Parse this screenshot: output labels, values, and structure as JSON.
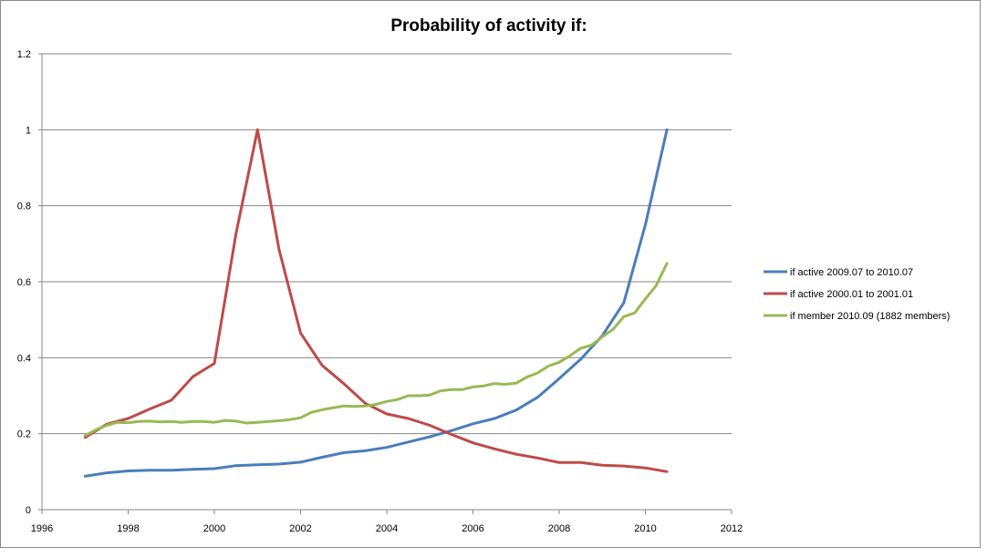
{
  "chart_data": {
    "type": "line",
    "title": "Probability of activity  if:",
    "xlabel": "",
    "ylabel": "",
    "xlim": [
      1996,
      2012
    ],
    "ylim": [
      0,
      1.2
    ],
    "xticks": [
      1996,
      1998,
      2000,
      2002,
      2004,
      2006,
      2008,
      2010,
      2012
    ],
    "yticks": [
      0,
      0.2,
      0.4,
      0.6,
      0.8,
      1,
      1.2
    ],
    "xtick_labels": [
      "1996",
      "1998",
      "2000",
      "2002",
      "2004",
      "2006",
      "2008",
      "2010",
      "2012"
    ],
    "ytick_labels": [
      "0",
      "0.2",
      "0.4",
      "0.6",
      "0.8",
      "1",
      "1.2"
    ],
    "grid": "horizontal",
    "legend_position": "right",
    "series": [
      {
        "name": "if active 2009.07 to 2010.07",
        "color": "#4a7ebb",
        "x": [
          1997,
          1997.5,
          1998,
          1998.5,
          1999,
          1999.5,
          2000,
          2000.5,
          2001,
          2001.5,
          2002,
          2002.5,
          2003,
          2003.5,
          2004,
          2004.5,
          2005,
          2005.5,
          2006,
          2006.5,
          2007,
          2007.5,
          2008,
          2008.5,
          2009,
          2009.5,
          2010,
          2010.5
        ],
        "y": [
          0.088,
          0.097,
          0.102,
          0.104,
          0.104,
          0.106,
          0.108,
          0.116,
          0.118,
          0.12,
          0.125,
          0.138,
          0.15,
          0.155,
          0.164,
          0.178,
          0.192,
          0.208,
          0.226,
          0.24,
          0.262,
          0.296,
          0.345,
          0.396,
          0.458,
          0.545,
          0.75,
          1.0
        ]
      },
      {
        "name": "if active 2000.01 to  2001.01",
        "color": "#be4b48",
        "x": [
          1997,
          1997.5,
          1998,
          1998.5,
          1999,
          1999.5,
          2000,
          2000.5,
          2001,
          2001.5,
          2002,
          2002.5,
          2003,
          2003.5,
          2004,
          2004.5,
          2005,
          2005.5,
          2006,
          2006.5,
          2007,
          2007.5,
          2008,
          2008.5,
          2009,
          2009.5,
          2010,
          2010.5
        ],
        "y": [
          0.19,
          0.225,
          0.24,
          0.265,
          0.288,
          0.35,
          0.385,
          0.725,
          1.0,
          0.685,
          0.465,
          0.38,
          0.332,
          0.28,
          0.252,
          0.24,
          0.222,
          0.198,
          0.176,
          0.16,
          0.146,
          0.136,
          0.124,
          0.124,
          0.117,
          0.115,
          0.11,
          0.1
        ]
      },
      {
        "name": "if member 2010.09 (1882 members)",
        "color": "#98b954",
        "x": [
          1997,
          1997.25,
          1997.5,
          1997.75,
          1998,
          1998.25,
          1998.5,
          1998.75,
          1999,
          1999.25,
          1999.5,
          1999.75,
          2000,
          2000.25,
          2000.5,
          2000.75,
          2001,
          2001.25,
          2001.5,
          2001.75,
          2002,
          2002.25,
          2002.5,
          2002.75,
          2003,
          2003.25,
          2003.5,
          2003.75,
          2004,
          2004.25,
          2004.5,
          2004.75,
          2005,
          2005.25,
          2005.5,
          2005.75,
          2006,
          2006.25,
          2006.5,
          2006.75,
          2007,
          2007.25,
          2007.5,
          2007.75,
          2008,
          2008.25,
          2008.5,
          2008.75,
          2009,
          2009.25,
          2009.5,
          2009.75,
          2010,
          2010.25,
          2010.5
        ],
        "y": [
          0.195,
          0.21,
          0.222,
          0.23,
          0.229,
          0.232,
          0.233,
          0.231,
          0.232,
          0.23,
          0.232,
          0.232,
          0.23,
          0.235,
          0.233,
          0.228,
          0.23,
          0.232,
          0.234,
          0.237,
          0.242,
          0.256,
          0.263,
          0.268,
          0.273,
          0.272,
          0.273,
          0.277,
          0.285,
          0.29,
          0.3,
          0.3,
          0.302,
          0.313,
          0.316,
          0.316,
          0.323,
          0.326,
          0.332,
          0.33,
          0.333,
          0.349,
          0.36,
          0.378,
          0.388,
          0.405,
          0.425,
          0.433,
          0.455,
          0.475,
          0.508,
          0.518,
          0.555,
          0.59,
          0.648
        ]
      }
    ]
  }
}
